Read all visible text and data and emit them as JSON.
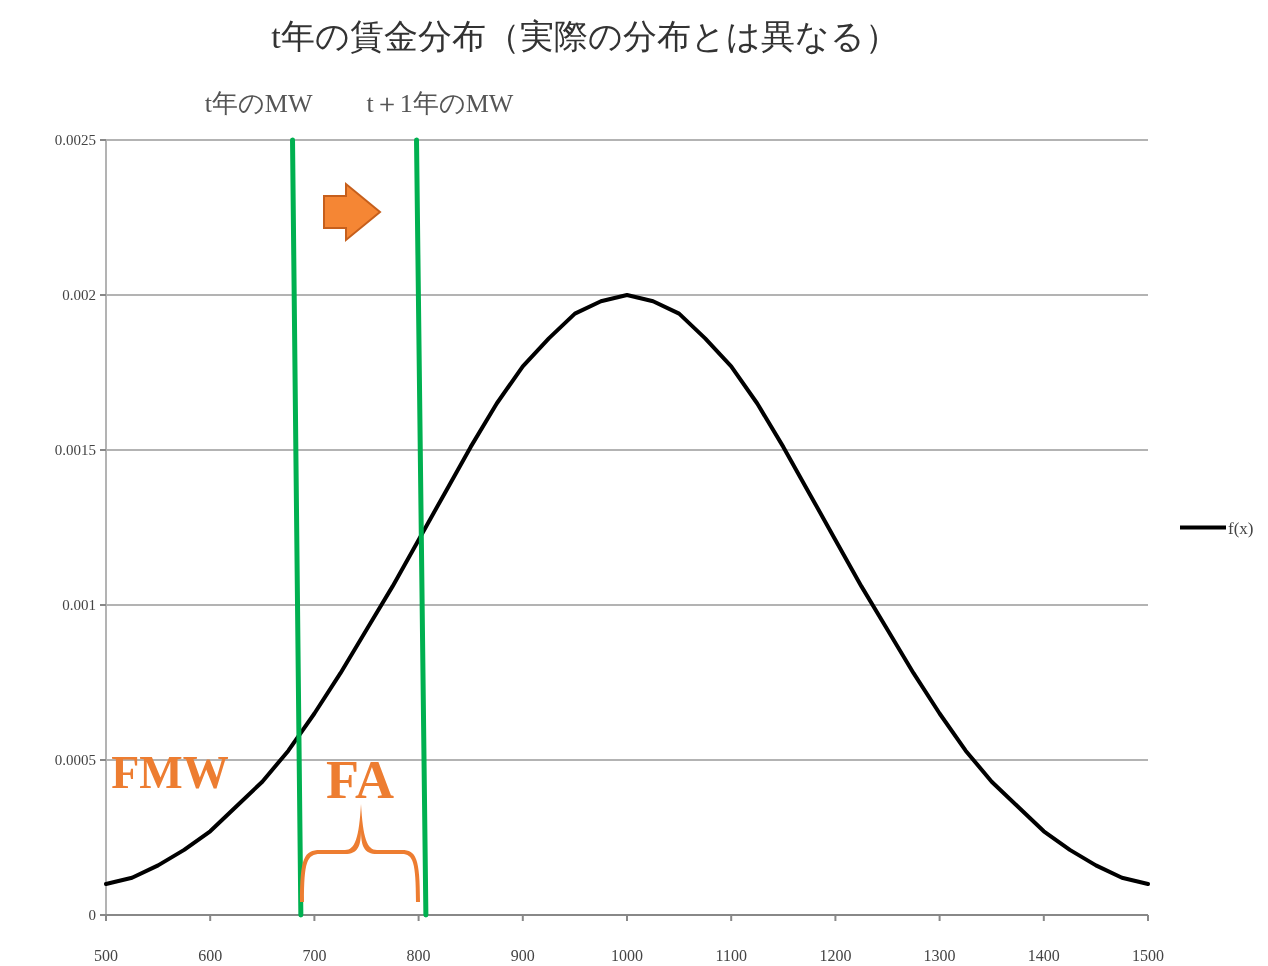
{
  "chart_data": {
    "type": "line",
    "title": "t年の賃金分布（実際の分布とは異なる）",
    "x": [
      500,
      525,
      550,
      575,
      600,
      625,
      650,
      675,
      700,
      725,
      750,
      775,
      800,
      825,
      850,
      875,
      900,
      925,
      950,
      975,
      1000,
      1025,
      1050,
      1075,
      1100,
      1125,
      1150,
      1175,
      1200,
      1225,
      1250,
      1275,
      1300,
      1325,
      1350,
      1375,
      1400,
      1425,
      1450,
      1475,
      1500
    ],
    "series": [
      {
        "name": "f(x)",
        "color": "#000000",
        "values": [
          0.0001,
          0.00012,
          0.00016,
          0.00021,
          0.00027,
          0.00035,
          0.00043,
          0.00053,
          0.00065,
          0.00078,
          0.00092,
          0.00106,
          0.00121,
          0.00136,
          0.00151,
          0.00165,
          0.00177,
          0.00186,
          0.00194,
          0.00198,
          0.002,
          0.00198,
          0.00194,
          0.00186,
          0.00177,
          0.00165,
          0.00151,
          0.00136,
          0.00121,
          0.00106,
          0.00092,
          0.00078,
          0.00065,
          0.00053,
          0.00043,
          0.00035,
          0.00027,
          0.00021,
          0.00016,
          0.00012,
          0.0001
        ]
      },
      {
        "color": "#00b050",
        "x": [
          679,
          687
        ],
        "values": [
          0.0025,
          0
        ]
      },
      {
        "color": "#00b050",
        "x": [
          798,
          807
        ],
        "values": [
          0.0025,
          0
        ]
      }
    ],
    "xlim": [
      500,
      1500
    ],
    "xticks": [
      500,
      600,
      700,
      800,
      900,
      1000,
      1100,
      1200,
      1300,
      1400,
      1500
    ],
    "ylim": [
      0,
      0.0025
    ],
    "yticks": [
      0,
      0.0005,
      0.001,
      0.0015,
      0.002,
      0.0025
    ],
    "grid": "y",
    "legend": "right",
    "marker": "none",
    "line_style": "solid",
    "annotations": [
      {
        "text": "t年のMW",
        "x": 679,
        "y": 0.0025
      },
      {
        "text": "t＋1年のMW",
        "x": 798,
        "y": 0.0025
      },
      "FMW",
      "FA"
    ]
  }
}
